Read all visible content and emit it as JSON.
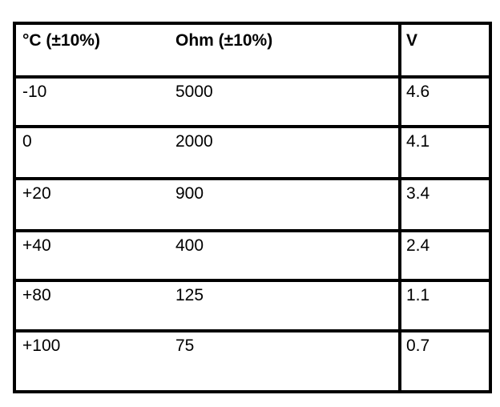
{
  "table": {
    "header": [
      "°C (±10%)",
      "Ohm (±10%)",
      "V"
    ],
    "rows": [
      [
        "-10",
        "5000",
        "4.6"
      ],
      [
        "0",
        "2000",
        "4.1"
      ],
      [
        "+20",
        "900",
        "3.4"
      ],
      [
        "+40",
        "400",
        "2.4"
      ],
      [
        "+80",
        "125",
        "1.1"
      ],
      [
        "+100",
        "75",
        "0.7"
      ]
    ]
  }
}
